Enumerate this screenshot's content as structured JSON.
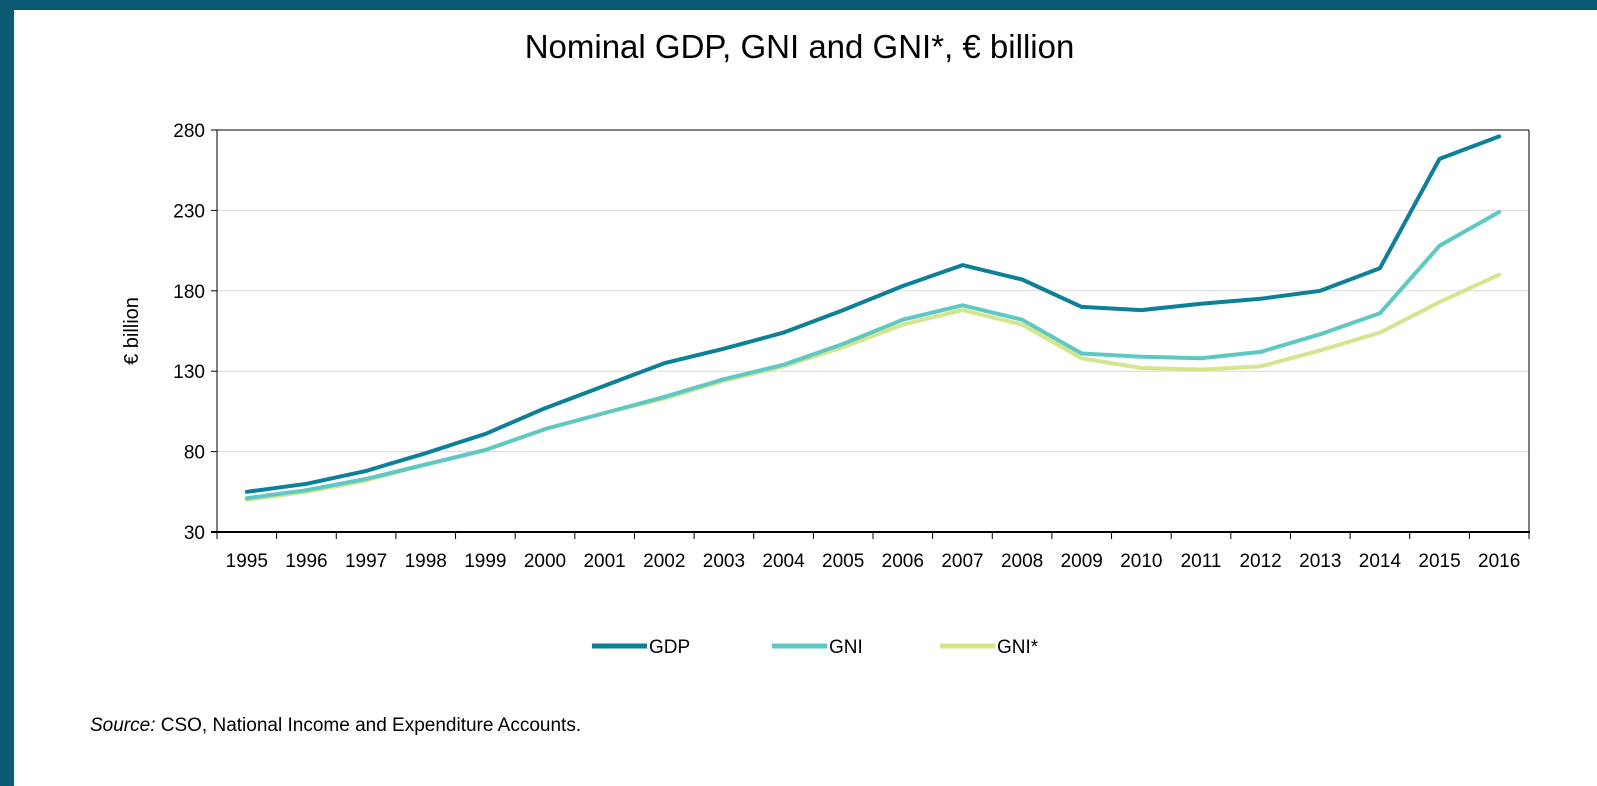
{
  "chart_data": {
    "type": "line",
    "title": "Nominal GDP, GNI and GNI*, € billion",
    "xlabel": "",
    "ylabel": "€ billion",
    "ylim": [
      30,
      280
    ],
    "yticks": [
      30,
      80,
      130,
      180,
      230,
      280
    ],
    "grid": "horizontal",
    "legend": "bottom-center",
    "categories": [
      "1995",
      "1996",
      "1997",
      "1998",
      "1999",
      "2000",
      "2001",
      "2002",
      "2003",
      "2004",
      "2005",
      "2006",
      "2007",
      "2008",
      "2009",
      "2010",
      "2011",
      "2012",
      "2013",
      "2014",
      "2015",
      "2016"
    ],
    "series": [
      {
        "name": "GDP",
        "color": "#0a8199",
        "values": [
          55,
          60,
          68,
          79,
          91,
          107,
          121,
          135,
          144,
          154,
          168,
          183,
          196,
          187,
          170,
          168,
          172,
          175,
          180,
          194,
          262,
          276
        ]
      },
      {
        "name": "GNI",
        "color": "#5ec8c3",
        "values": [
          51,
          56,
          63,
          72,
          81,
          94,
          104,
          114,
          125,
          134,
          147,
          162,
          171,
          162,
          141,
          139,
          138,
          142,
          153,
          166,
          208,
          229
        ]
      },
      {
        "name": "GNI*",
        "color": "#d4e58c",
        "values": [
          50,
          55,
          62,
          72,
          81,
          94,
          104,
          113,
          124,
          133,
          145,
          159,
          168,
          159,
          138,
          132,
          131,
          133,
          143,
          154,
          173,
          190
        ]
      }
    ]
  },
  "source": {
    "label": "Source:",
    "text": " CSO, National Income and Expenditure Accounts."
  }
}
